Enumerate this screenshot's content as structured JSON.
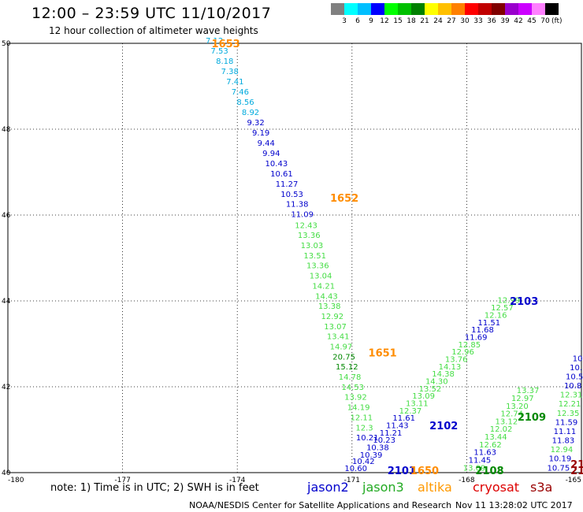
{
  "header": {
    "title": "12:00 – 23:59 UTC 11/10/2017",
    "subtitle": "12 hour collection of altimeter wave heights"
  },
  "colorbar": {
    "colors": [
      "#808080",
      "#00ffff",
      "#00bfff",
      "#0000ff",
      "#00ff00",
      "#00c000",
      "#008000",
      "#ffff00",
      "#ffc000",
      "#ff8000",
      "#ff0000",
      "#c00000",
      "#800000",
      "#9900cc",
      "#cc00ff",
      "#ff80ff",
      "#000000"
    ],
    "ticks": [
      "3",
      "6",
      "9",
      "12",
      "15",
      "18",
      "21",
      "24",
      "27",
      "30",
      "33",
      "36",
      "39",
      "42",
      "45",
      "70"
    ],
    "unit": "(ft)"
  },
  "map": {
    "lon_range": [
      -180,
      -165
    ],
    "lat_range": [
      40,
      50
    ],
    "x_ticks": [
      "-180",
      "-177",
      "-174",
      "-171",
      "-168",
      "-165"
    ],
    "y_ticks": [
      "40",
      "42",
      "44",
      "46",
      "48",
      "50"
    ],
    "grid": "dotted"
  },
  "tracks": [
    {
      "satellite": "jason2",
      "color": "#0000cc",
      "passes": [
        {
          "label": "1653",
          "label_color": "#ff8c00",
          "pos": [
            -174.3,
            50.0
          ],
          "values": [
            "7.12",
            "7.53",
            "8.18",
            "7.38",
            "7.41",
            "7.46",
            "8.56",
            "8.92",
            "9.32",
            "9.19",
            "9.44",
            "9.94",
            "10.43",
            "10.61",
            "11.27",
            "10.53",
            "11.38",
            "11.09"
          ],
          "colors": [
            "#00aadd",
            "#00aadd",
            "#00aadd",
            "#00aadd",
            "#00aadd",
            "#00aadd",
            "#00aadd",
            "#00aadd",
            "#0000cc",
            "#0000cc",
            "#0000cc",
            "#0000cc",
            "#0000cc",
            "#0000cc",
            "#0000cc",
            "#0000cc",
            "#0000cc",
            "#0000cc"
          ],
          "start": [
            -174.6,
            50.0
          ],
          "end": [
            -172.3,
            45.95
          ]
        }
      ]
    },
    {
      "satellite": "jason2",
      "color": "#0000cc",
      "passes": [
        {
          "label": "1652",
          "label_color": "#ff8c00",
          "pos": [
            -171.2,
            46.4
          ],
          "values": [
            "12.43",
            "13.36",
            "13.03",
            "13.51",
            "13.36",
            "13.04",
            "14.21",
            "14.43",
            "13.38",
            "12.92",
            "13.07",
            "13.41",
            "14.97",
            "20.75",
            "15.12",
            "14.78",
            "14.53",
            "13.92",
            "14.19",
            "12.11",
            "12.3",
            "10.21"
          ],
          "colors": [
            "#44dd44",
            "#44dd44",
            "#44dd44",
            "#44dd44",
            "#44dd44",
            "#44dd44",
            "#44dd44",
            "#44dd44",
            "#44dd44",
            "#44dd44",
            "#44dd44",
            "#44dd44",
            "#44dd44",
            "#008800",
            "#008800",
            "#44dd44",
            "#44dd44",
            "#44dd44",
            "#44dd44",
            "#44dd44",
            "#44dd44",
            "#0000cc"
          ],
          "start": [
            -172.2,
            45.7
          ],
          "end": [
            -170.6,
            40.75
          ]
        }
      ]
    },
    {
      "satellite": "jason3",
      "color": "#44dd44",
      "passes": [
        {
          "label": "1651",
          "label_color": "#ff8c00",
          "pos": [
            -170.2,
            42.8
          ],
          "values": [],
          "colors": [],
          "start": [
            0,
            0
          ],
          "end": [
            0,
            0
          ]
        }
      ]
    },
    {
      "satellite": "jason2",
      "color": "#0000cc",
      "passes": [
        {
          "label": "2103",
          "label_color": "#0000cc",
          "pos": [
            -166.5,
            44.0
          ],
          "values": [
            "12.99",
            "12.57",
            "12.16",
            "11.51",
            "11.68",
            "11.69",
            "12.85",
            "12.96",
            "13.76",
            "14.13",
            "14.38",
            "14.30",
            "13.52",
            "13.09",
            "13.11",
            "12.37",
            "11.61",
            "11.43",
            "11.21",
            "10.23",
            "10.38",
            "10.39"
          ],
          "colors": [
            "#44dd44",
            "#44dd44",
            "#44dd44",
            "#0000cc",
            "#0000cc",
            "#0000cc",
            "#44dd44",
            "#44dd44",
            "#44dd44",
            "#44dd44",
            "#44dd44",
            "#44dd44",
            "#44dd44",
            "#44dd44",
            "#44dd44",
            "#44dd44",
            "#0000cc",
            "#0000cc",
            "#0000cc",
            "#0000cc",
            "#0000cc",
            "#0000cc"
          ],
          "start": [
            -166.9,
            43.95
          ],
          "end": [
            -170.5,
            40.35
          ]
        }
      ]
    },
    {
      "satellite": "jason2",
      "color": "#0000cc",
      "passes": [
        {
          "label": "2102",
          "label_color": "#0000cc",
          "pos": [
            -168.6,
            41.1
          ],
          "values": [],
          "colors": [],
          "start": [
            0,
            0
          ],
          "end": [
            0,
            0
          ]
        }
      ]
    },
    {
      "satellite": "jason3",
      "color": "#008800",
      "passes": [
        {
          "label": "2109",
          "label_color": "#008800",
          "pos": [
            -166.3,
            41.3
          ],
          "values": [
            "13.37",
            "12.97",
            "13.20",
            "12.74",
            "13.12",
            "12.02",
            "13.44",
            "12.62",
            "11.63",
            "11.45",
            "13.09"
          ],
          "colors": [
            "#44dd44",
            "#44dd44",
            "#44dd44",
            "#44dd44",
            "#44dd44",
            "#44dd44",
            "#44dd44",
            "#44dd44",
            "#0000cc",
            "#0000cc",
            "#44dd44"
          ],
          "start": [
            -166.4,
            41.85
          ],
          "end": [
            -167.8,
            40.05
          ]
        }
      ]
    },
    {
      "satellite": "jason3",
      "color": "#008800",
      "passes": [
        {
          "label": "2108",
          "label_color": "#008800",
          "pos": [
            -167.4,
            40.0
          ],
          "values": [],
          "colors": [],
          "start": [
            0,
            0
          ],
          "end": [
            0,
            0
          ]
        }
      ]
    },
    {
      "satellite": "jason2",
      "color": "#0000cc",
      "passes": [
        {
          "label": "",
          "label_color": "#0000cc",
          "pos": [
            0,
            0
          ],
          "values": [
            "10",
            "10.",
            "10.5",
            "10.8",
            "12.31",
            "12.21",
            "12.35",
            "11.59",
            "11.11",
            "11.83",
            "12.94",
            "10.19",
            "10.75"
          ],
          "colors": [
            "#0000cc",
            "#0000cc",
            "#0000cc",
            "#0000cc",
            "#44dd44",
            "#44dd44",
            "#44dd44",
            "#0000cc",
            "#0000cc",
            "#0000cc",
            "#44dd44",
            "#0000cc",
            "#0000cc"
          ],
          "start": [
            -165.1,
            42.6
          ],
          "end": [
            -165.6,
            40.05
          ]
        }
      ]
    },
    {
      "satellite": "misc",
      "color": "#0000cc",
      "passes": [
        {
          "label": "2101",
          "label_color": "#0000cc",
          "pos": [
            -169.7,
            40.0
          ],
          "values": [
            "10.42",
            "10.60"
          ],
          "colors": [
            "#0000cc",
            "#0000cc"
          ],
          "start": [
            -170.7,
            40.2
          ],
          "end": [
            -170.9,
            40.0
          ]
        },
        {
          "label": "1650",
          "label_color": "#ff8c00",
          "pos": [
            -169.1,
            40.0
          ],
          "values": [],
          "colors": [],
          "start": [
            0,
            0
          ],
          "end": [
            0,
            0
          ]
        },
        {
          "label": "21",
          "label_color": "#990000",
          "pos": [
            -165.1,
            40.2
          ],
          "values": [],
          "colors": [],
          "start": [
            0,
            0
          ],
          "end": [
            0,
            0
          ]
        },
        {
          "label": "21",
          "label_color": "#990000",
          "pos": [
            -165.1,
            40.0
          ],
          "values": [],
          "colors": [],
          "start": [
            0,
            0
          ],
          "end": [
            0,
            0
          ]
        }
      ]
    }
  ],
  "footer": {
    "note": "note: 1) Time is in UTC; 2) SWH is in feet",
    "satellites": [
      {
        "name": "jason2",
        "color": "#0000cc"
      },
      {
        "name": "jason3",
        "color": "#22aa22"
      },
      {
        "name": "altika",
        "color": "#ff9900"
      },
      {
        "name": "cryosat",
        "color": "#dd0000"
      },
      {
        "name": "s3a",
        "color": "#990000"
      }
    ],
    "credit": "NOAA/NESDIS Center for Satellite Applications and Research",
    "timestamp": "Nov 11 13:28:02 UTC 2017"
  }
}
